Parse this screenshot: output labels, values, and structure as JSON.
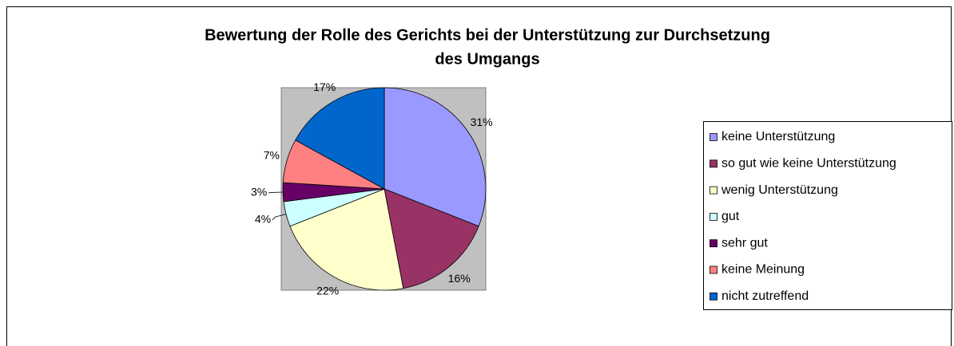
{
  "chart_data": {
    "type": "pie",
    "title": [
      "Bewertung der Rolle des Gerichts bei der Unterstützung zur Durchsetzung",
      "des Umgangs"
    ],
    "categories": [
      "keine Unterstützung",
      "so gut wie keine Unterstützung",
      "wenig Unterstützung",
      "gut",
      "sehr gut",
      "keine Meinung",
      "nicht zutreffend"
    ],
    "values": [
      31,
      16,
      22,
      4,
      3,
      7,
      17
    ],
    "value_labels": [
      "31%",
      "16%",
      "22%",
      "4%",
      "3%",
      "7%",
      "17%"
    ],
    "colors": [
      "#9999ff",
      "#993366",
      "#ffffcc",
      "#ccffff",
      "#660066",
      "#ff8080",
      "#0066cc"
    ],
    "legend": "right"
  }
}
